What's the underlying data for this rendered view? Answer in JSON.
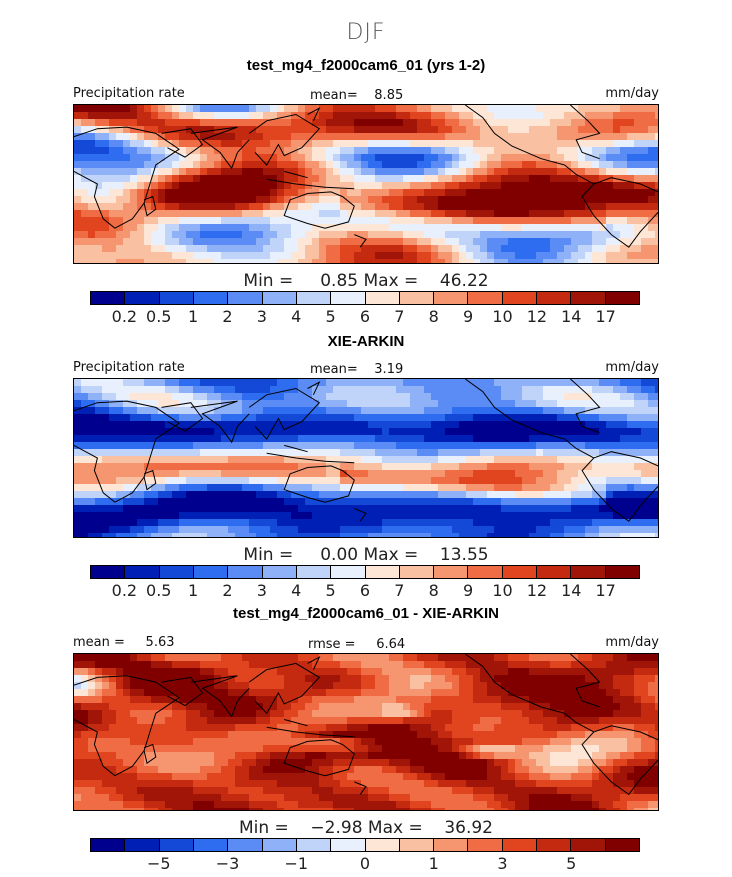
{
  "season": "DJF",
  "panels": [
    {
      "title": "test_mg4_f2000cam6_01 (yrs 1-2)",
      "left_label": "Precipitation rate",
      "center_label": "mean=    8.85",
      "right_label": "mm/day",
      "min_label": "Min =     0.85",
      "max_label": "Max =    46.22",
      "colorbar_ticks": [
        "0.2",
        "0.5",
        "1",
        "2",
        "3",
        "4",
        "5",
        "6",
        "7",
        "8",
        "9",
        "10",
        "12",
        "14",
        "17"
      ],
      "field": "model"
    },
    {
      "title": "XIE-ARKIN",
      "left_label": "Precipitation rate",
      "center_label": "mean=    3.19",
      "right_label": "mm/day",
      "min_label": "Min =     0.00",
      "max_label": "Max =    13.55",
      "colorbar_ticks": [
        "0.2",
        "0.5",
        "1",
        "2",
        "3",
        "4",
        "5",
        "6",
        "7",
        "8",
        "9",
        "10",
        "12",
        "14",
        "17"
      ],
      "field": "obs"
    },
    {
      "title": "test_mg4_f2000cam6_01 - XIE-ARKIN",
      "left_label": "mean =     5.63",
      "center_label": "rmse =     6.64",
      "right_label": "mm/day",
      "min_label": "Min =    −2.98",
      "max_label": "Max =    36.92",
      "colorbar_ticks": [
        "−5",
        "−3",
        "−1",
        "0",
        "1",
        "3",
        "5"
      ],
      "field": "diff"
    }
  ],
  "colors": {
    "scale": [
      "#00008f",
      "#0020b5",
      "#1449d8",
      "#2e6cf0",
      "#5b8cf5",
      "#8fb1f7",
      "#c0d4fa",
      "#e8f0fd",
      "#fde6d6",
      "#f9c0a2",
      "#f59671",
      "#ef6c45",
      "#e0451f",
      "#c42a10",
      "#a11408",
      "#800000"
    ],
    "coast": "#000000",
    "frame": "#000000"
  }
}
